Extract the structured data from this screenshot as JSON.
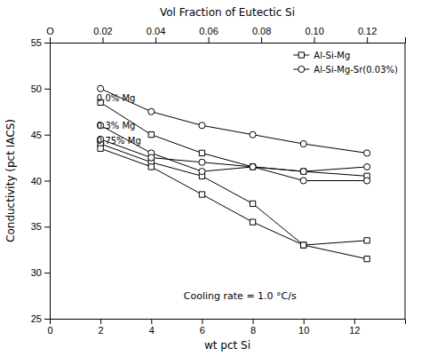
{
  "chart_data": {
    "type": "line",
    "xlabel": "wt pct Si",
    "ylabel": "Conductivity (pct IACS)",
    "x2label": "Vol Fraction of Eutectic  Si",
    "xlim": [
      0,
      14
    ],
    "ylim": [
      25,
      55
    ],
    "xticks": [
      0,
      2,
      4,
      6,
      8,
      10,
      12
    ],
    "yticks": [
      25,
      30,
      35,
      40,
      45,
      50,
      55
    ],
    "x2lim": [
      0,
      0.1344
    ],
    "x2ticks": [
      {
        "value": 0,
        "label": "O"
      },
      0.02,
      0.04,
      0.06,
      0.08,
      {
        "value": 0.1,
        "label": "0.10"
      },
      0.12
    ],
    "color": "black",
    "grid": false,
    "legend": "upper right",
    "legend_entries": [
      {
        "marker": "square",
        "label": "Al-Si-Mg"
      },
      {
        "marker": "circle",
        "label": "Al-Si-Mg-Sr(0.03%)"
      }
    ],
    "series": [
      {
        "marker": "square",
        "x": [
          2,
          4,
          6,
          8,
          10,
          12.5
        ],
        "values": [
          48.5,
          45.0,
          43.0,
          41.5,
          41.0,
          40.5
        ]
      },
      {
        "marker": "circle",
        "x": [
          2,
          4,
          6,
          8,
          10,
          12.5
        ],
        "values": [
          50.0,
          47.5,
          46.0,
          45.0,
          44.0,
          43.0
        ]
      },
      {
        "marker": "square",
        "x": [
          2,
          4,
          6,
          8,
          10,
          12.5
        ],
        "values": [
          44.0,
          42.0,
          40.5,
          37.5,
          33.0,
          33.5
        ]
      },
      {
        "marker": "circle",
        "x": [
          2,
          4,
          6,
          8,
          10,
          12.5
        ],
        "values": [
          46.0,
          43.0,
          41.0,
          41.5,
          41.0,
          41.5
        ]
      },
      {
        "marker": "square",
        "x": [
          2,
          4,
          6,
          8,
          10,
          12.5
        ],
        "values": [
          43.5,
          41.5,
          38.5,
          35.5,
          33.0,
          31.5
        ]
      },
      {
        "marker": "circle",
        "x": [
          2,
          4,
          6,
          8,
          10,
          12.5
        ],
        "values": [
          44.5,
          42.5,
          42.0,
          41.5,
          40.0,
          40.0
        ]
      }
    ],
    "annotations": [
      {
        "text": "0.0% Mg",
        "x": 1.85,
        "y": 49.0
      },
      {
        "text": "0.3% Mg",
        "x": 1.85,
        "y": 46.0
      },
      {
        "text": "0.75% Mg",
        "x": 1.85,
        "y": 44.3
      }
    ],
    "annotation": {
      "text": "Cooling rate = 1.0 °C/s",
      "x": 7.5,
      "y": 27.5
    }
  }
}
